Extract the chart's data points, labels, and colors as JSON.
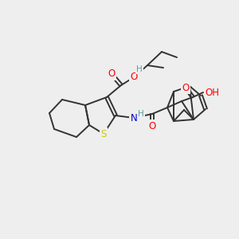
{
  "bg_color": "#eeeeee",
  "atom_colors": {
    "O": "#ff0000",
    "N": "#0000cc",
    "S": "#cccc00",
    "C": "#333333",
    "H": "#5f9ea0"
  },
  "figsize": [
    3.0,
    3.0
  ],
  "dpi": 100
}
